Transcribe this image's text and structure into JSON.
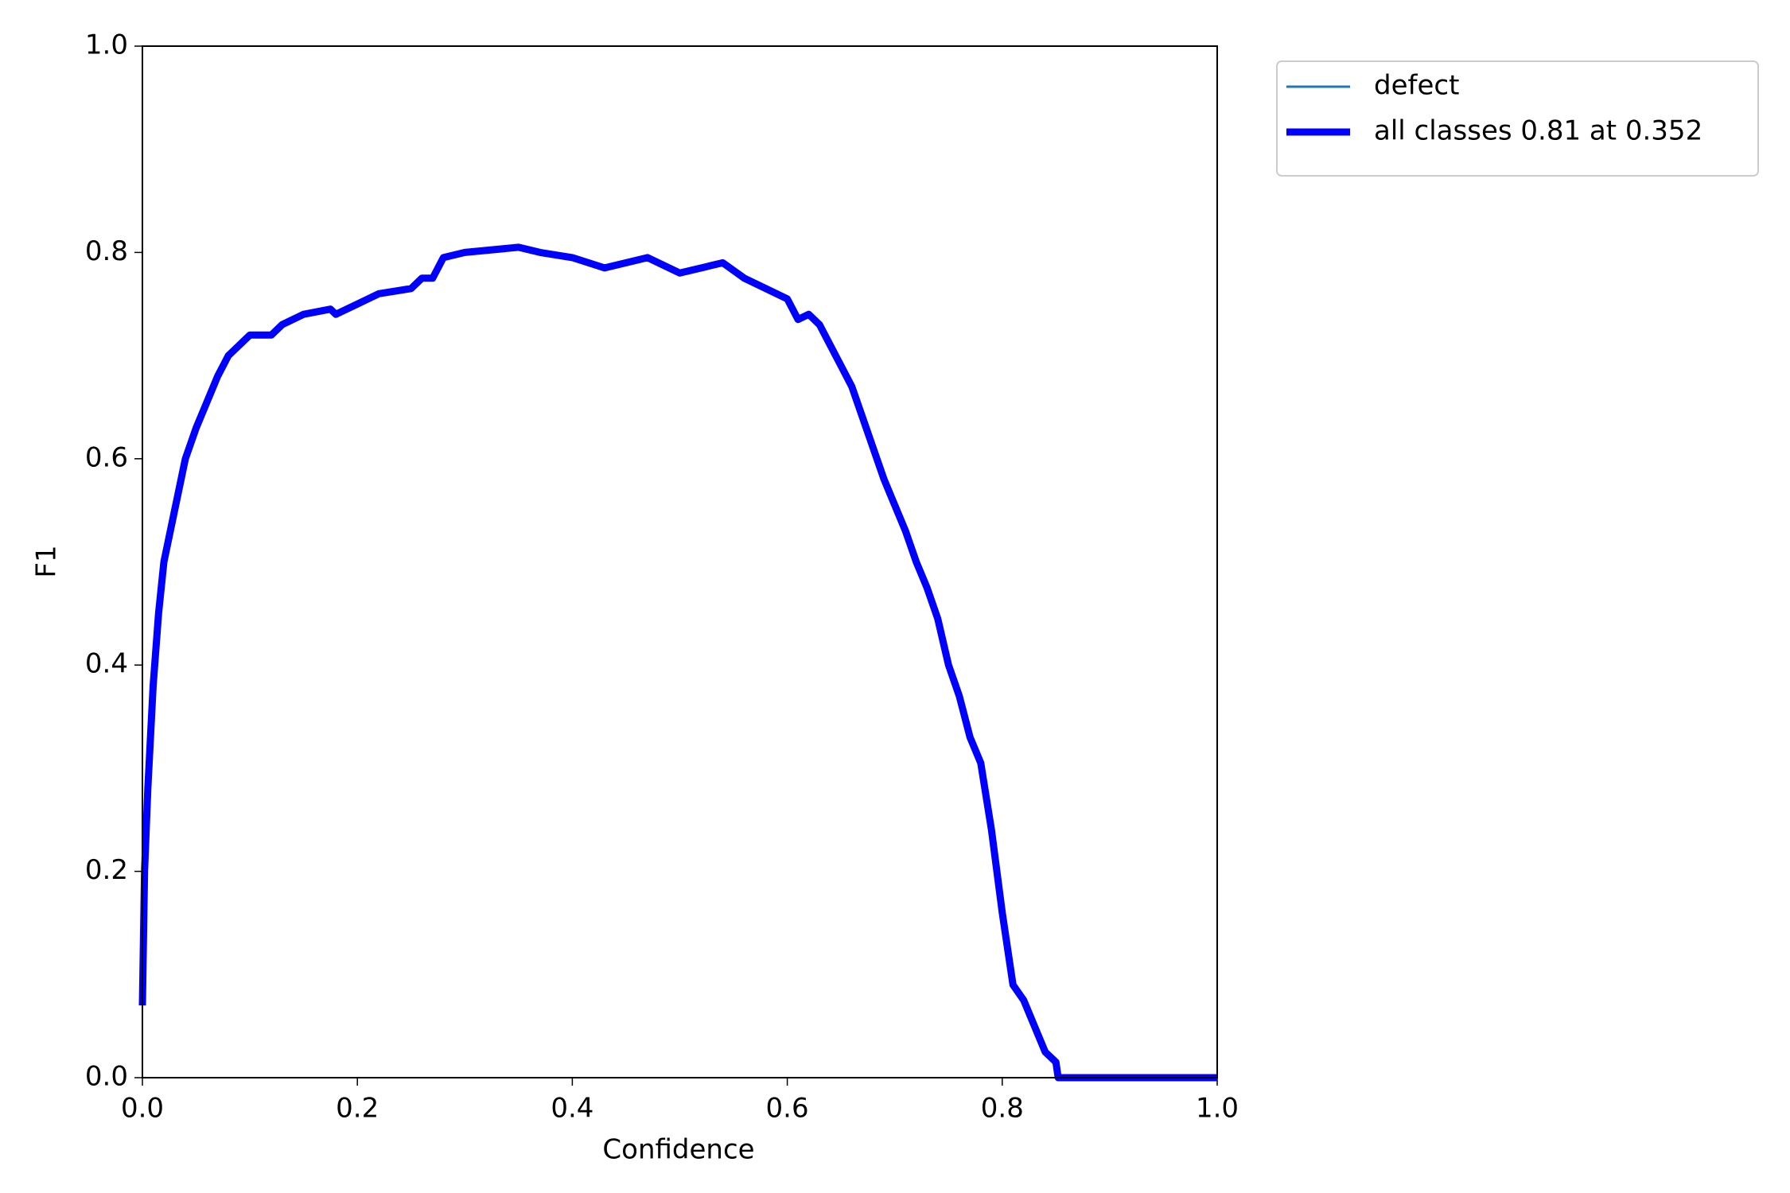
{
  "chart_data": {
    "type": "line",
    "xlabel": "Confidence",
    "ylabel": "F1",
    "xlim": [
      0,
      1
    ],
    "ylim": [
      0,
      1
    ],
    "xticks": [
      {
        "value": 0,
        "label": "0.0"
      },
      0.2,
      0.4,
      0.6,
      0.8,
      {
        "value": 1,
        "label": "1.0"
      }
    ],
    "yticks": [
      {
        "value": 0,
        "label": "0.0"
      },
      0.2,
      0.4,
      0.6,
      0.8,
      {
        "value": 1,
        "label": "1.0"
      }
    ],
    "legend": "upper-right-outside",
    "x": [
      0,
      0.002,
      0.005,
      0.01,
      0.015,
      0.02,
      0.03,
      0.04,
      0.05,
      0.06,
      0.07,
      0.08,
      0.1,
      0.12,
      0.13,
      0.15,
      0.175,
      0.18,
      0.2,
      0.22,
      0.25,
      0.26,
      0.27,
      0.28,
      0.3,
      0.35,
      0.37,
      0.4,
      0.43,
      0.47,
      0.5,
      0.54,
      0.56,
      0.58,
      0.6,
      0.61,
      0.62,
      0.63,
      0.64,
      0.65,
      0.66,
      0.67,
      0.68,
      0.69,
      0.7,
      0.71,
      0.72,
      0.73,
      0.74,
      0.75,
      0.76,
      0.77,
      0.78,
      0.79,
      0.8,
      0.81,
      0.82,
      0.83,
      0.84,
      0.85,
      0.852,
      1
    ],
    "series": [
      {
        "name": "defect",
        "color": "#1f77b4",
        "width": 1,
        "values": [
          0.07,
          0.2,
          0.28,
          0.38,
          0.45,
          0.5,
          0.55,
          0.6,
          0.63,
          0.655,
          0.68,
          0.7,
          0.72,
          0.72,
          0.73,
          0.74,
          0.745,
          0.74,
          0.75,
          0.76,
          0.765,
          0.775,
          0.775,
          0.795,
          0.8,
          0.805,
          0.8,
          0.795,
          0.785,
          0.795,
          0.78,
          0.79,
          0.775,
          0.765,
          0.755,
          0.735,
          0.74,
          0.73,
          0.71,
          0.69,
          0.67,
          0.64,
          0.61,
          0.58,
          0.555,
          0.53,
          0.5,
          0.475,
          0.445,
          0.4,
          0.37,
          0.33,
          0.305,
          0.24,
          0.16,
          0.09,
          0.075,
          0.05,
          0.025,
          0.015,
          0,
          0
        ]
      },
      {
        "name": "all classes 0.81 at 0.352",
        "color": "#0000ff",
        "width": 3,
        "values": [
          0.07,
          0.2,
          0.28,
          0.38,
          0.45,
          0.5,
          0.55,
          0.6,
          0.63,
          0.655,
          0.68,
          0.7,
          0.72,
          0.72,
          0.73,
          0.74,
          0.745,
          0.74,
          0.75,
          0.76,
          0.765,
          0.775,
          0.775,
          0.795,
          0.8,
          0.805,
          0.8,
          0.795,
          0.785,
          0.795,
          0.78,
          0.79,
          0.775,
          0.765,
          0.755,
          0.735,
          0.74,
          0.73,
          0.71,
          0.69,
          0.67,
          0.64,
          0.61,
          0.58,
          0.555,
          0.53,
          0.5,
          0.475,
          0.445,
          0.4,
          0.37,
          0.33,
          0.305,
          0.24,
          0.16,
          0.09,
          0.075,
          0.05,
          0.025,
          0.015,
          0,
          0
        ]
      }
    ]
  }
}
